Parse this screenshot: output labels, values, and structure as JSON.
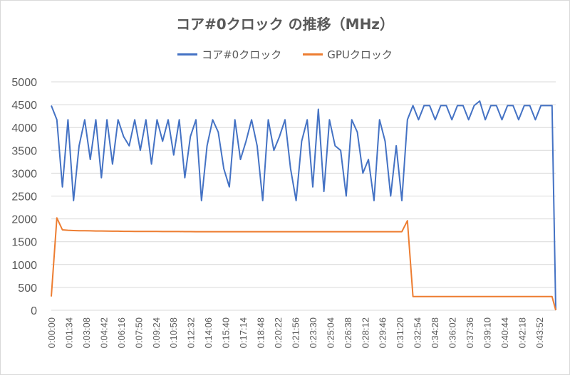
{
  "chart_data": {
    "type": "line",
    "title": "コア#0クロック の推移（MHz）",
    "xlabel": "",
    "ylabel": "",
    "ylim": [
      0,
      5000
    ],
    "yticks": [
      "0",
      "500",
      "1000",
      "1500",
      "2000",
      "2500",
      "3000",
      "3500",
      "4000",
      "4500",
      "5000"
    ],
    "xticks": [
      "0:00:00",
      "0:01:34",
      "0:03:08",
      "0:04:42",
      "0:06:16",
      "0:07:50",
      "0:09:24",
      "0:10:58",
      "0:12:32",
      "0:14:06",
      "0:15:40",
      "0:17:14",
      "0:18:48",
      "0:20:22",
      "0:21:56",
      "0:23:30",
      "0:25:04",
      "0:26:38",
      "0:28:12",
      "0:29:46",
      "0:31:20",
      "0:32:54",
      "0:34:28",
      "0:36:02",
      "0:37:36",
      "0:39:10",
      "0:40:44",
      "0:42:18",
      "0:43:52"
    ],
    "grid": true,
    "legend_position": "top",
    "x": [
      "0:00:00",
      "0:00:30",
      "0:01:00",
      "0:01:30",
      "0:02:00",
      "0:02:30",
      "0:03:00",
      "0:03:30",
      "0:04:00",
      "0:04:30",
      "0:05:00",
      "0:05:30",
      "0:06:00",
      "0:06:30",
      "0:07:00",
      "0:07:30",
      "0:08:00",
      "0:08:30",
      "0:09:00",
      "0:09:30",
      "0:10:00",
      "0:10:30",
      "0:11:00",
      "0:11:30",
      "0:12:00",
      "0:12:30",
      "0:13:00",
      "0:13:30",
      "0:14:00",
      "0:14:30",
      "0:15:00",
      "0:15:30",
      "0:16:00",
      "0:16:30",
      "0:17:00",
      "0:17:30",
      "0:18:00",
      "0:18:30",
      "0:19:00",
      "0:19:30",
      "0:20:00",
      "0:20:30",
      "0:21:00",
      "0:21:30",
      "0:22:00",
      "0:22:30",
      "0:23:00",
      "0:23:30",
      "0:24:00",
      "0:24:30",
      "0:25:00",
      "0:25:30",
      "0:26:00",
      "0:26:30",
      "0:27:00",
      "0:27:30",
      "0:28:00",
      "0:28:30",
      "0:29:00",
      "0:29:30",
      "0:30:00",
      "0:30:30",
      "0:31:00",
      "0:31:30",
      "0:32:00",
      "0:32:30",
      "0:33:00",
      "0:33:30",
      "0:34:00",
      "0:34:30",
      "0:35:00",
      "0:35:30",
      "0:36:00",
      "0:36:30",
      "0:37:00",
      "0:37:30",
      "0:38:00",
      "0:38:30",
      "0:39:00",
      "0:39:30",
      "0:40:00",
      "0:40:30",
      "0:41:00",
      "0:41:30",
      "0:42:00",
      "0:42:30",
      "0:43:00",
      "0:43:30",
      "0:44:00",
      "0:44:30",
      "0:45:00",
      "0:45:20"
    ],
    "series": [
      {
        "name": "コア#0クロック",
        "color": "#4472c4",
        "values": [
          4480,
          4170,
          2700,
          4170,
          2400,
          3600,
          4170,
          3300,
          4170,
          2900,
          4170,
          3200,
          4170,
          3800,
          3600,
          4170,
          3500,
          4170,
          3200,
          4170,
          3700,
          4170,
          3400,
          4170,
          2900,
          3800,
          4170,
          2400,
          3600,
          4170,
          3900,
          3100,
          2700,
          4170,
          3300,
          3700,
          4170,
          3600,
          2400,
          4170,
          3500,
          3800,
          4170,
          3100,
          2400,
          3700,
          4170,
          2700,
          4400,
          2600,
          4170,
          3600,
          3500,
          2500,
          4170,
          3900,
          3000,
          3300,
          2400,
          4170,
          3700,
          2500,
          3600,
          2400,
          4170,
          4480,
          4170,
          4480,
          4480,
          4170,
          4480,
          4480,
          4170,
          4480,
          4480,
          4170,
          4480,
          4580,
          4170,
          4480,
          4480,
          4170,
          4480,
          4480,
          4170,
          4480,
          4480,
          4170,
          4480,
          4480,
          4480,
          0
        ]
      },
      {
        "name": "GPUクロック",
        "color": "#ed7d31",
        "values": [
          300,
          2020,
          1760,
          1750,
          1745,
          1740,
          1740,
          1738,
          1735,
          1735,
          1732,
          1730,
          1730,
          1728,
          1728,
          1726,
          1725,
          1725,
          1724,
          1724,
          1723,
          1722,
          1722,
          1722,
          1721,
          1721,
          1720,
          1720,
          1720,
          1720,
          1720,
          1720,
          1720,
          1720,
          1720,
          1720,
          1720,
          1720,
          1720,
          1720,
          1720,
          1720,
          1720,
          1720,
          1720,
          1720,
          1720,
          1720,
          1720,
          1720,
          1720,
          1720,
          1720,
          1720,
          1720,
          1720,
          1720,
          1720,
          1720,
          1720,
          1720,
          1720,
          1720,
          1720,
          1960,
          300,
          300,
          300,
          300,
          300,
          300,
          300,
          300,
          300,
          300,
          300,
          300,
          300,
          300,
          300,
          300,
          300,
          300,
          300,
          300,
          300,
          300,
          300,
          300,
          300,
          300,
          0
        ]
      }
    ]
  }
}
